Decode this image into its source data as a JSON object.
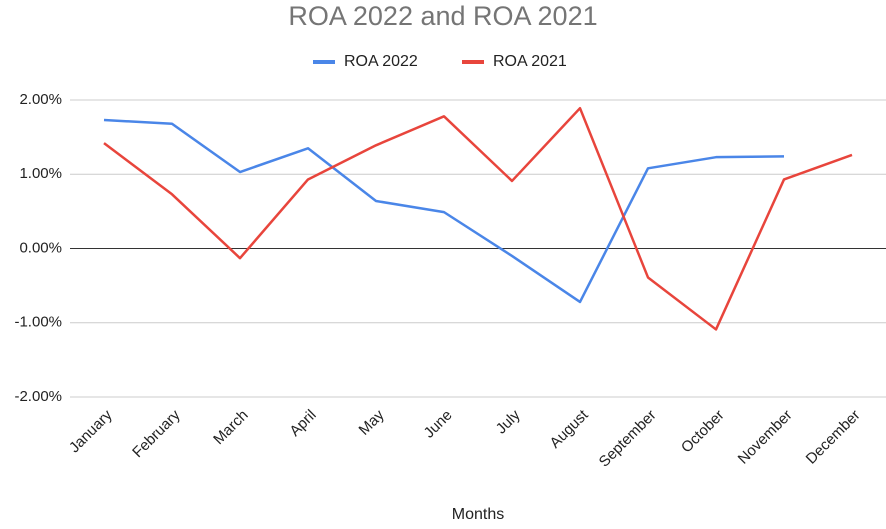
{
  "chart_data": {
    "type": "line",
    "title": "ROA 2022 and ROA 2021",
    "x_label": "Months",
    "categories": [
      "January",
      "February",
      "March",
      "April",
      "May",
      "June",
      "July",
      "August",
      "September",
      "October",
      "November",
      "December"
    ],
    "series": [
      {
        "name": "ROA 2022",
        "color": "#4a86e8",
        "values": [
          1.73,
          1.68,
          1.03,
          1.35,
          0.64,
          0.49,
          -0.1,
          -0.72,
          1.08,
          1.23,
          1.24,
          null
        ]
      },
      {
        "name": "ROA 2021",
        "color": "#e8453c",
        "values": [
          1.42,
          0.73,
          -0.13,
          0.93,
          1.39,
          1.78,
          0.91,
          1.89,
          -0.39,
          -1.09,
          0.93,
          1.26
        ]
      }
    ],
    "ylim": [
      -2,
      2
    ],
    "yticks": [
      {
        "value": -2,
        "label": "-2.00%"
      },
      {
        "value": -1,
        "label": "-1.00%"
      },
      {
        "value": 0,
        "label": "0.00%"
      },
      {
        "value": 1,
        "label": "1.00%"
      },
      {
        "value": 2,
        "label": "2.00%"
      }
    ],
    "grid": true,
    "legend": "top"
  }
}
